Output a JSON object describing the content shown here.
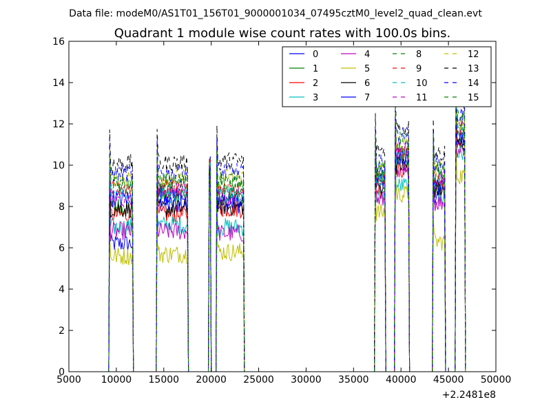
{
  "figure": {
    "suptitle": "Data file: modeM0/AS1T01_156T01_9000001034_07495cztM0_level2_quad_clean.evt"
  },
  "chart_data": {
    "type": "line",
    "title": "Quadrant 1 module wise count rates with 100.0s bins.",
    "xlabel": "",
    "ylabel": "",
    "x_offset_label": "+2.2481e8",
    "xlim": [
      5000,
      50000
    ],
    "ylim": [
      0,
      16
    ],
    "x_ticks": [
      5000,
      10000,
      15000,
      20000,
      25000,
      30000,
      35000,
      40000,
      45000,
      50000
    ],
    "y_ticks": [
      0,
      2,
      4,
      6,
      8,
      10,
      12,
      14,
      16
    ],
    "grid": false,
    "legend_position": "top-right",
    "legend_columns": 4,
    "segments": [
      {
        "start": 9300,
        "end": 11700
      },
      {
        "start": 14300,
        "end": 17500
      },
      {
        "start": 19800,
        "end": 19900
      },
      {
        "start": 20600,
        "end": 23400
      },
      {
        "start": 37300,
        "end": 38300
      },
      {
        "start": 39400,
        "end": 40800
      },
      {
        "start": 43400,
        "end": 44600
      },
      {
        "start": 45800,
        "end": 46700
      }
    ],
    "series": [
      {
        "name": "0",
        "color": "#0000ff",
        "style": "solid",
        "levels": [
          6.2,
          8.1,
          10.0,
          8.1,
          9.6,
          10.2,
          8.6,
          11.2
        ]
      },
      {
        "name": "1",
        "color": "#008000",
        "style": "solid",
        "levels": [
          8.0,
          8.6,
          10.0,
          8.5,
          9.2,
          10.5,
          9.0,
          11.5
        ]
      },
      {
        "name": "2",
        "color": "#ff0000",
        "style": "solid",
        "levels": [
          7.6,
          7.6,
          9.9,
          7.9,
          8.8,
          9.8,
          8.9,
          11.0
        ]
      },
      {
        "name": "3",
        "color": "#00bfbf",
        "style": "solid",
        "levels": [
          7.0,
          7.1,
          9.8,
          7.0,
          8.5,
          9.0,
          8.4,
          10.6
        ]
      },
      {
        "name": "4",
        "color": "#bf00bf",
        "style": "solid",
        "levels": [
          6.8,
          6.8,
          9.7,
          6.7,
          8.3,
          9.5,
          8.2,
          10.8
        ]
      },
      {
        "name": "5",
        "color": "#bfbf00",
        "style": "solid",
        "levels": [
          5.6,
          5.7,
          9.6,
          5.8,
          7.7,
          8.6,
          6.3,
          9.5
        ]
      },
      {
        "name": "6",
        "color": "#000000",
        "style": "solid",
        "levels": [
          7.9,
          7.9,
          10.0,
          8.0,
          9.0,
          10.0,
          8.8,
          11.0
        ]
      },
      {
        "name": "7",
        "color": "#0000ff",
        "style": "solid",
        "levels": [
          8.4,
          8.6,
          10.0,
          8.3,
          9.3,
          10.4,
          9.0,
          11.4
        ]
      },
      {
        "name": "8",
        "color": "#008000",
        "style": "dashed",
        "levels": [
          9.2,
          9.1,
          10.0,
          9.1,
          9.6,
          10.8,
          9.6,
          11.8
        ]
      },
      {
        "name": "9",
        "color": "#ff0000",
        "style": "dashed",
        "levels": [
          8.9,
          8.9,
          10.0,
          8.8,
          9.4,
          10.6,
          9.3,
          11.6
        ]
      },
      {
        "name": "10",
        "color": "#00bfbf",
        "style": "dashed",
        "levels": [
          8.6,
          8.6,
          9.9,
          8.6,
          9.3,
          10.4,
          9.3,
          11.5
        ]
      },
      {
        "name": "11",
        "color": "#bf00bf",
        "style": "dashed",
        "levels": [
          8.3,
          8.8,
          9.9,
          8.5,
          9.2,
          10.7,
          9.4,
          12.0
        ]
      },
      {
        "name": "12",
        "color": "#bfbf00",
        "style": "dashed",
        "levels": [
          9.4,
          9.4,
          10.0,
          9.4,
          9.7,
          11.0,
          9.8,
          12.0
        ]
      },
      {
        "name": "13",
        "color": "#000000",
        "style": "dashed",
        "levels": [
          10.1,
          10.1,
          10.0,
          10.2,
          10.7,
          11.8,
          10.6,
          13.4
        ]
      },
      {
        "name": "14",
        "color": "#0000ff",
        "style": "dashed",
        "levels": [
          9.6,
          9.6,
          10.0,
          9.7,
          10.1,
          11.4,
          10.1,
          12.5
        ]
      },
      {
        "name": "15",
        "color": "#008000",
        "style": "dashed",
        "levels": [
          9.0,
          9.2,
          10.0,
          9.3,
          9.8,
          11.2,
          9.8,
          12.3
        ]
      }
    ]
  }
}
